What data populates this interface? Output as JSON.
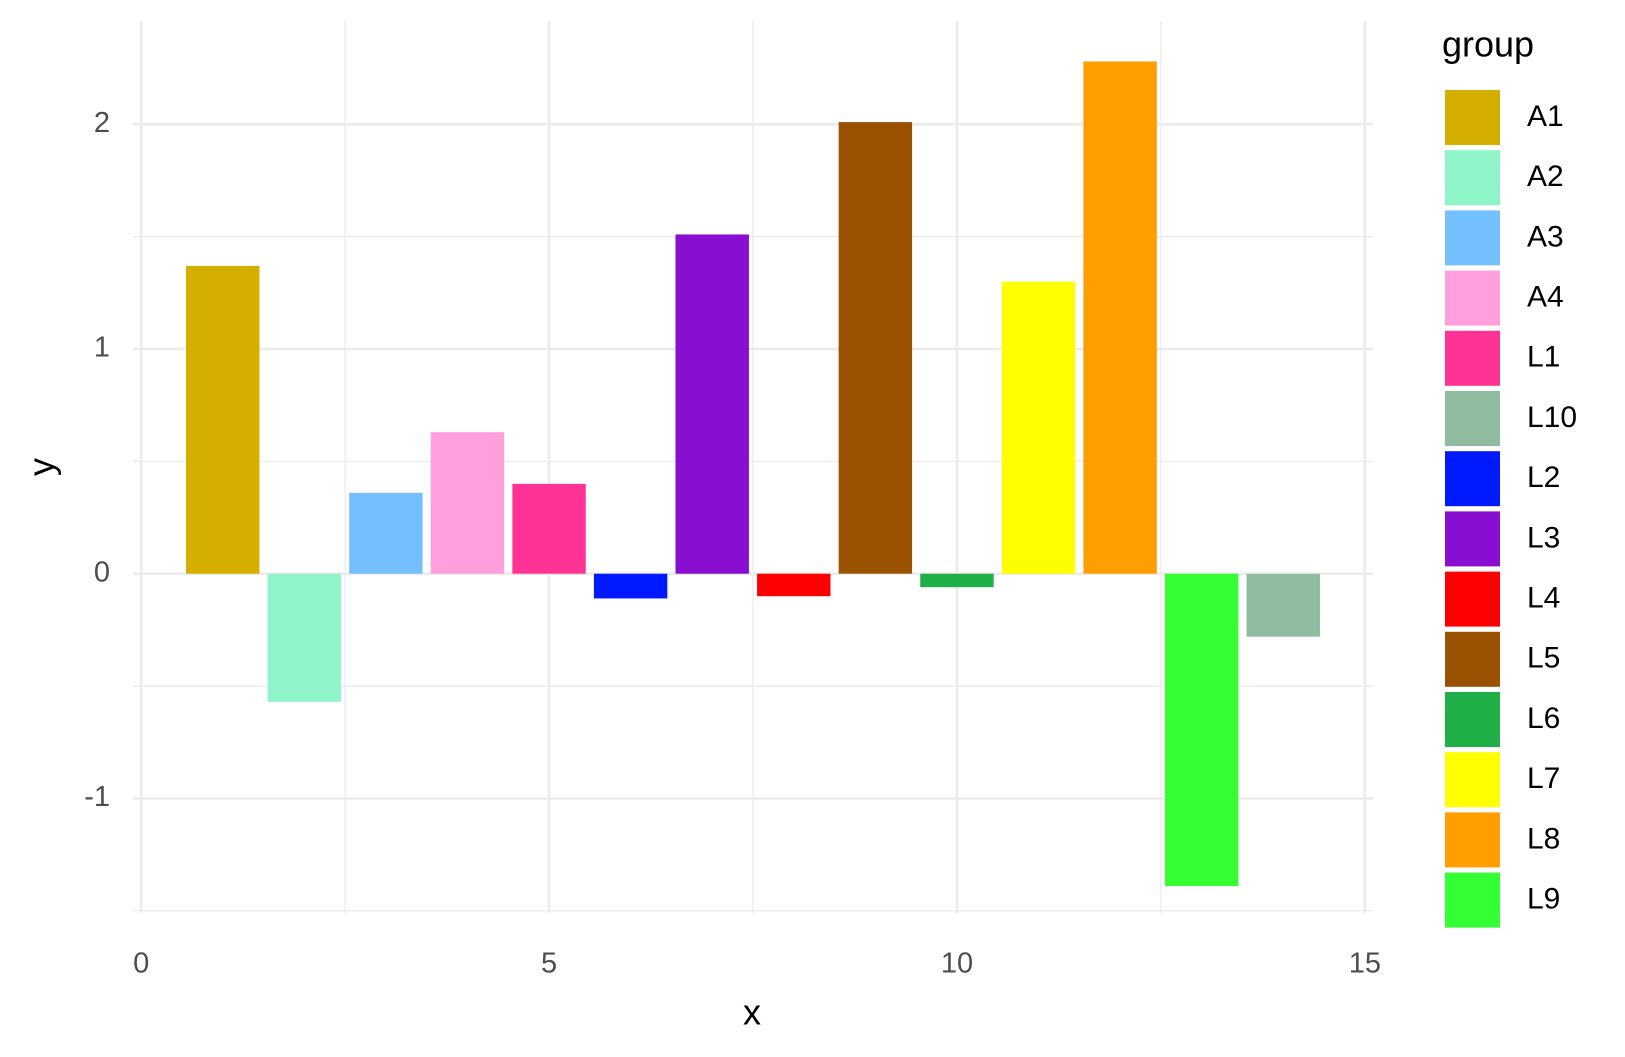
{
  "chart_data": {
    "type": "bar",
    "x_label": "x",
    "y_label": "y",
    "legend_title": "group",
    "legend": "right",
    "grid": true,
    "xlim": [
      -0.1,
      15.1
    ],
    "xticks": [
      0,
      5,
      10,
      15
    ],
    "xminor": [
      2.5,
      7.5,
      12.5
    ],
    "ylim": [
      -1.51,
      2.46
    ],
    "yticks": [
      -1,
      0,
      1,
      2
    ],
    "yminor": [
      -1.5,
      -0.5,
      0.5,
      1.5
    ],
    "bar_width": 0.9,
    "series": [
      {
        "name": "A1",
        "color": "#D4AF00",
        "x": [
          1
        ],
        "values": [
          1.37
        ]
      },
      {
        "name": "A2",
        "color": "#8FF5C8",
        "x": [
          2
        ],
        "values": [
          -0.57
        ]
      },
      {
        "name": "A3",
        "color": "#74C0FF",
        "x": [
          3
        ],
        "values": [
          0.36
        ]
      },
      {
        "name": "A4",
        "color": "#FFA0DC",
        "x": [
          4
        ],
        "values": [
          0.63
        ]
      },
      {
        "name": "L1",
        "color": "#FF3296",
        "x": [
          5
        ],
        "values": [
          0.4
        ]
      },
      {
        "name": "L10",
        "color": "#8FBC9F",
        "x": [
          14
        ],
        "values": [
          -0.28
        ]
      },
      {
        "name": "L2",
        "color": "#0019FF",
        "x": [
          6
        ],
        "values": [
          -0.11
        ]
      },
      {
        "name": "L3",
        "color": "#880ED2",
        "x": [
          7
        ],
        "values": [
          1.51
        ]
      },
      {
        "name": "L4",
        "color": "#FF0000",
        "x": [
          8
        ],
        "values": [
          -0.1
        ]
      },
      {
        "name": "L5",
        "color": "#9A5200",
        "x": [
          9
        ],
        "values": [
          2.01
        ]
      },
      {
        "name": "L6",
        "color": "#1FAF46",
        "x": [
          10
        ],
        "values": [
          -0.06
        ]
      },
      {
        "name": "L7",
        "color": "#FFFF00",
        "x": [
          11
        ],
        "values": [
          1.3
        ]
      },
      {
        "name": "L8",
        "color": "#FF9E00",
        "x": [
          12
        ],
        "values": [
          2.28
        ]
      },
      {
        "name": "L9",
        "color": "#33FF33",
        "x": [
          13
        ],
        "values": [
          -1.39
        ]
      }
    ]
  }
}
